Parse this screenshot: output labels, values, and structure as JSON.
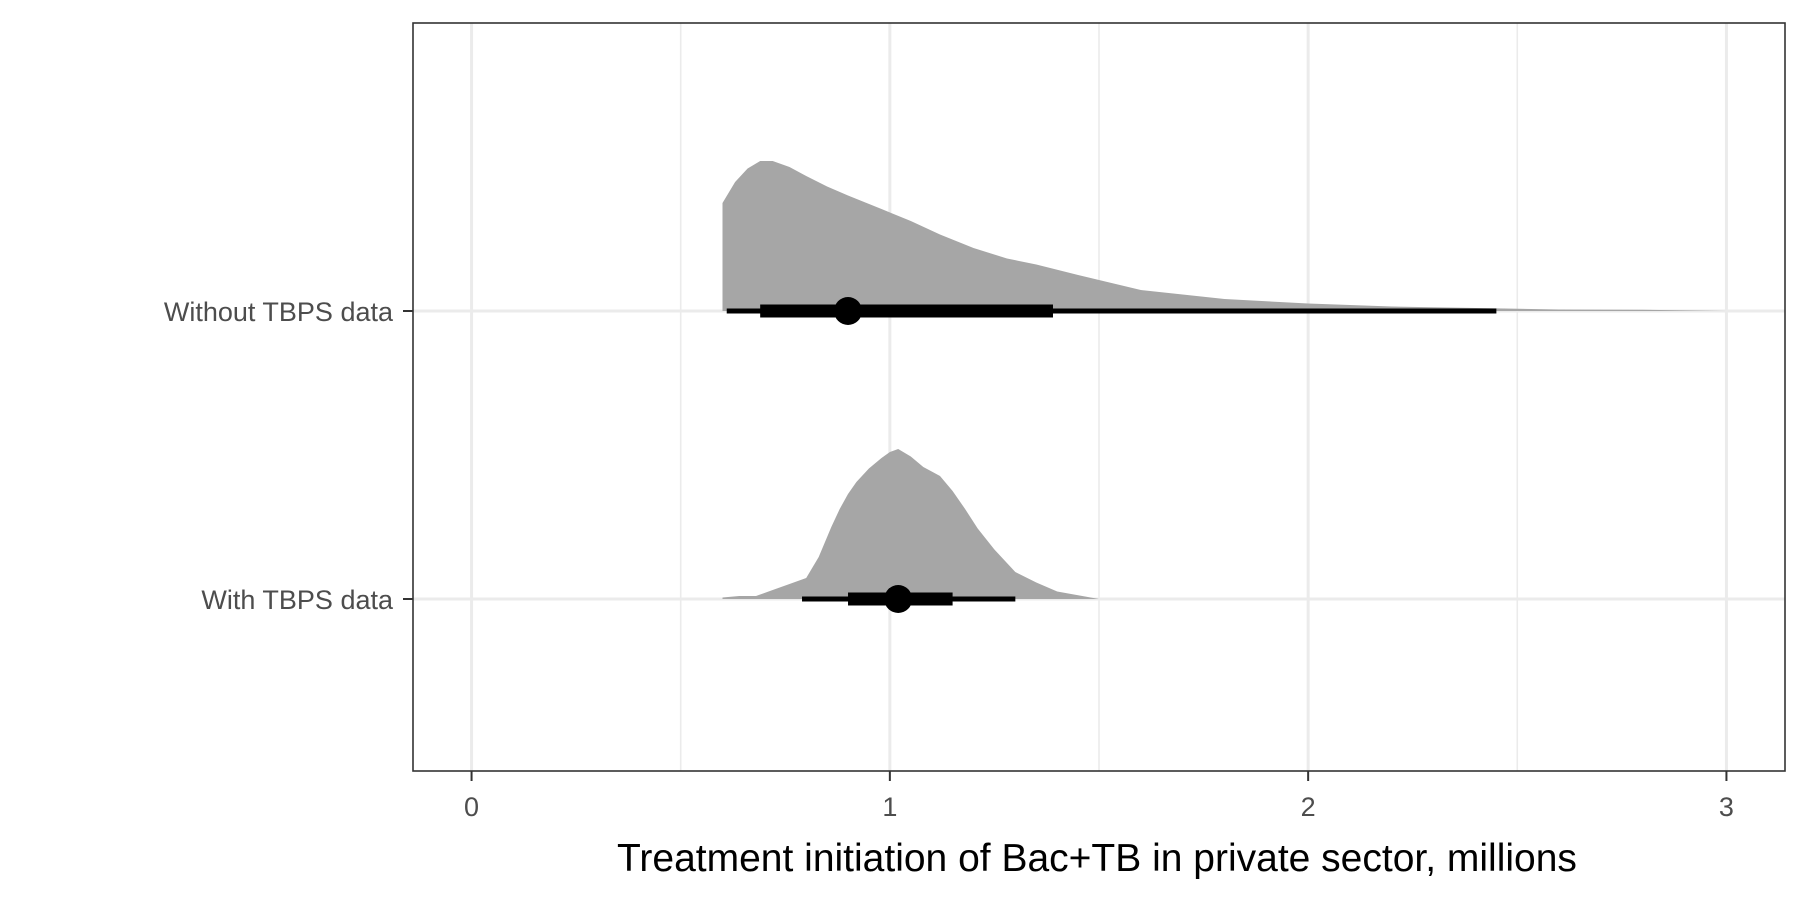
{
  "chart_data": {
    "type": "halfeye",
    "title": "",
    "xlabel": "Treatment initiation of Bac+TB in private sector, millions",
    "ylabel": "",
    "xlim": [
      -0.14,
      3.14
    ],
    "x_ticks": [
      0,
      1,
      2,
      3
    ],
    "x_tick_labels": [
      "0",
      "1",
      "2",
      "3"
    ],
    "x_minor_grid": [
      0.5,
      1.5,
      2.5
    ],
    "grid": true,
    "legend": "none",
    "categories": [
      "Without TBPS data",
      "With TBPS data"
    ],
    "series": [
      {
        "category": "Without TBPS data",
        "median": 0.9,
        "interval_66": [
          0.69,
          1.39
        ],
        "interval_95": [
          0.61,
          2.45
        ],
        "density": {
          "x": [
            0.6,
            0.6,
            0.63,
            0.66,
            0.69,
            0.72,
            0.76,
            0.8,
            0.85,
            0.9,
            0.98,
            1.05,
            1.12,
            1.2,
            1.28,
            1.35,
            1.45,
            1.6,
            1.8,
            2.0,
            2.2,
            2.4,
            2.6,
            2.8,
            3.0
          ],
          "y": [
            0,
            0.72,
            0.86,
            0.95,
            1.0,
            1.0,
            0.96,
            0.9,
            0.83,
            0.77,
            0.68,
            0.6,
            0.51,
            0.42,
            0.35,
            0.31,
            0.24,
            0.14,
            0.08,
            0.05,
            0.03,
            0.02,
            0.01,
            0.008,
            0.0
          ]
        },
        "colors": {
          "fill": "#a6a6a6",
          "interval": "#000000"
        }
      },
      {
        "category": "With TBPS data",
        "median": 1.02,
        "interval_66": [
          0.9,
          1.15
        ],
        "interval_95": [
          0.79,
          1.3
        ],
        "density": {
          "x": [
            0.6,
            0.64,
            0.68,
            0.72,
            0.76,
            0.8,
            0.83,
            0.86,
            0.88,
            0.9,
            0.92,
            0.95,
            0.98,
            1.0,
            1.02,
            1.05,
            1.08,
            1.1,
            1.12,
            1.15,
            1.18,
            1.21,
            1.25,
            1.3,
            1.35,
            1.4,
            1.5
          ],
          "y": [
            0.01,
            0.02,
            0.02,
            0.06,
            0.1,
            0.14,
            0.28,
            0.48,
            0.6,
            0.7,
            0.78,
            0.87,
            0.94,
            0.98,
            1.0,
            0.95,
            0.88,
            0.85,
            0.82,
            0.72,
            0.6,
            0.47,
            0.33,
            0.18,
            0.11,
            0.05,
            0.0
          ]
        },
        "colors": {
          "fill": "#a6a6a6",
          "interval": "#000000"
        }
      }
    ]
  }
}
